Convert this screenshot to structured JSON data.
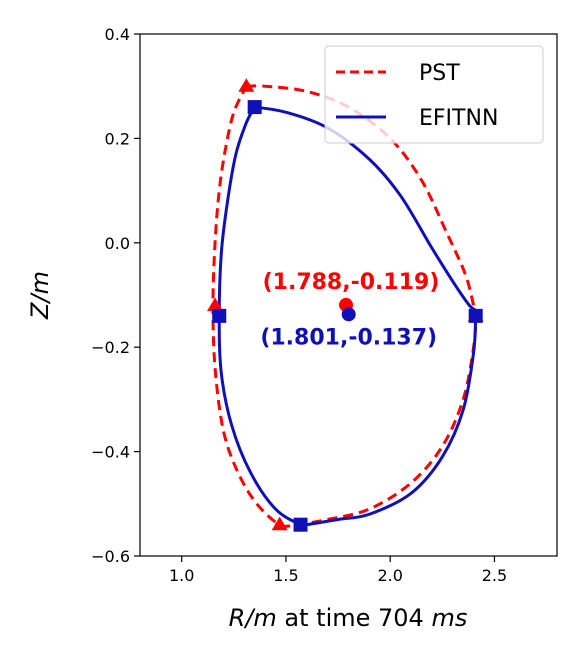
{
  "chart_data": {
    "type": "line",
    "xlabel_parts": [
      "R/m",
      " at time 704 ",
      "ms"
    ],
    "ylabel_parts": [
      "Z/m"
    ],
    "xlim": [
      0.8,
      2.8
    ],
    "ylim": [
      -0.6,
      0.4
    ],
    "xticks": [
      1.0,
      1.5,
      2.0,
      2.5
    ],
    "xtick_labels": [
      "1.0",
      "1.5",
      "2.0",
      "2.5"
    ],
    "yticks": [
      -0.6,
      -0.4,
      -0.2,
      0.0,
      0.2,
      0.4
    ],
    "ytick_labels": [
      "−0.6",
      "−0.4",
      "−0.2",
      "0.0",
      "0.2",
      "0.4"
    ],
    "grid": false,
    "legend_position": "top-right",
    "series": [
      {
        "name": "PST",
        "color": "#ff0000",
        "dash": true,
        "x": [
          1.31,
          1.4,
          1.6,
          1.8,
          2.0,
          2.15,
          2.27,
          2.36,
          2.4,
          2.41,
          2.4,
          2.35,
          2.25,
          2.1,
          1.9,
          1.7,
          1.55,
          1.47,
          1.36,
          1.27,
          1.2,
          1.16,
          1.15,
          1.16,
          1.18,
          1.21,
          1.25,
          1.31
        ],
        "y": [
          0.3,
          0.3,
          0.29,
          0.26,
          0.2,
          0.12,
          0.02,
          -0.06,
          -0.12,
          -0.14,
          -0.2,
          -0.3,
          -0.39,
          -0.46,
          -0.51,
          -0.53,
          -0.54,
          -0.54,
          -0.5,
          -0.44,
          -0.36,
          -0.24,
          -0.12,
          0.0,
          0.1,
          0.18,
          0.25,
          0.3
        ],
        "markers": {
          "symbol": "triangle",
          "x": [
            1.31,
            1.16,
            2.41,
            1.47
          ],
          "y": [
            0.3,
            -0.12,
            -0.14,
            -0.54
          ]
        },
        "center": {
          "x": 1.788,
          "y": -0.119
        },
        "annotation": "(1.788,-0.119)"
      },
      {
        "name": "EFITNN",
        "color": "#1010b8",
        "dash": false,
        "x": [
          1.35,
          1.5,
          1.7,
          1.9,
          2.05,
          2.2,
          2.31,
          2.38,
          2.41,
          2.41,
          2.4,
          2.35,
          2.25,
          2.1,
          1.9,
          1.75,
          1.6,
          1.57,
          1.45,
          1.33,
          1.24,
          1.19,
          1.18,
          1.19,
          1.22,
          1.26,
          1.31,
          1.35
        ],
        "y": [
          0.26,
          0.25,
          0.22,
          0.16,
          0.09,
          -0.01,
          -0.08,
          -0.12,
          -0.13,
          -0.14,
          -0.21,
          -0.32,
          -0.41,
          -0.48,
          -0.52,
          -0.53,
          -0.54,
          -0.54,
          -0.51,
          -0.44,
          -0.35,
          -0.25,
          -0.14,
          -0.02,
          0.08,
          0.17,
          0.23,
          0.26
        ],
        "markers": {
          "symbol": "square",
          "x": [
            1.35,
            1.18,
            2.41,
            1.57
          ],
          "y": [
            0.26,
            -0.14,
            -0.14,
            -0.54
          ]
        },
        "center": {
          "x": 1.801,
          "y": -0.137
        },
        "annotation": "(1.801,-0.137)"
      }
    ]
  }
}
